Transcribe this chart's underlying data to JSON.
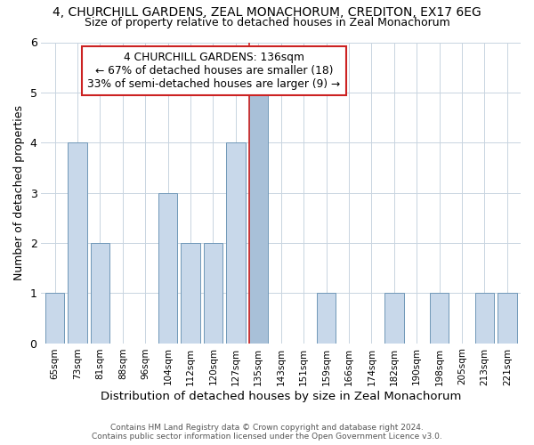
{
  "title": "4, CHURCHILL GARDENS, ZEAL MONACHORUM, CREDITON, EX17 6EG",
  "subtitle": "Size of property relative to detached houses in Zeal Monachorum",
  "xlabel": "Distribution of detached houses by size in Zeal Monachorum",
  "ylabel": "Number of detached properties",
  "footnote1": "Contains HM Land Registry data © Crown copyright and database right 2024.",
  "footnote2": "Contains public sector information licensed under the Open Government Licence v3.0.",
  "bin_labels": [
    "65sqm",
    "73sqm",
    "81sqm",
    "88sqm",
    "96sqm",
    "104sqm",
    "112sqm",
    "120sqm",
    "127sqm",
    "135sqm",
    "143sqm",
    "151sqm",
    "159sqm",
    "166sqm",
    "174sqm",
    "182sqm",
    "190sqm",
    "198sqm",
    "205sqm",
    "213sqm",
    "221sqm"
  ],
  "bar_heights": [
    1,
    4,
    2,
    0,
    0,
    3,
    2,
    2,
    4,
    5,
    0,
    0,
    1,
    0,
    0,
    1,
    0,
    1,
    0,
    1,
    1
  ],
  "highlight_index": 9,
  "bar_color_normal": "#c8d8ea",
  "bar_color_highlight": "#a8c0d8",
  "bar_edge_color": "#7098b8",
  "vline_color": "#cc2222",
  "ylim": [
    0,
    6
  ],
  "yticks": [
    0,
    1,
    2,
    3,
    4,
    5,
    6
  ],
  "annotation_title": "4 CHURCHILL GARDENS: 136sqm",
  "annotation_line1": "← 67% of detached houses are smaller (18)",
  "annotation_line2": "33% of semi-detached houses are larger (9) →",
  "annotation_box_color": "#ffffff",
  "annotation_box_edge": "#cc2222",
  "bg_color": "#ffffff",
  "grid_color": "#c8d4e0"
}
